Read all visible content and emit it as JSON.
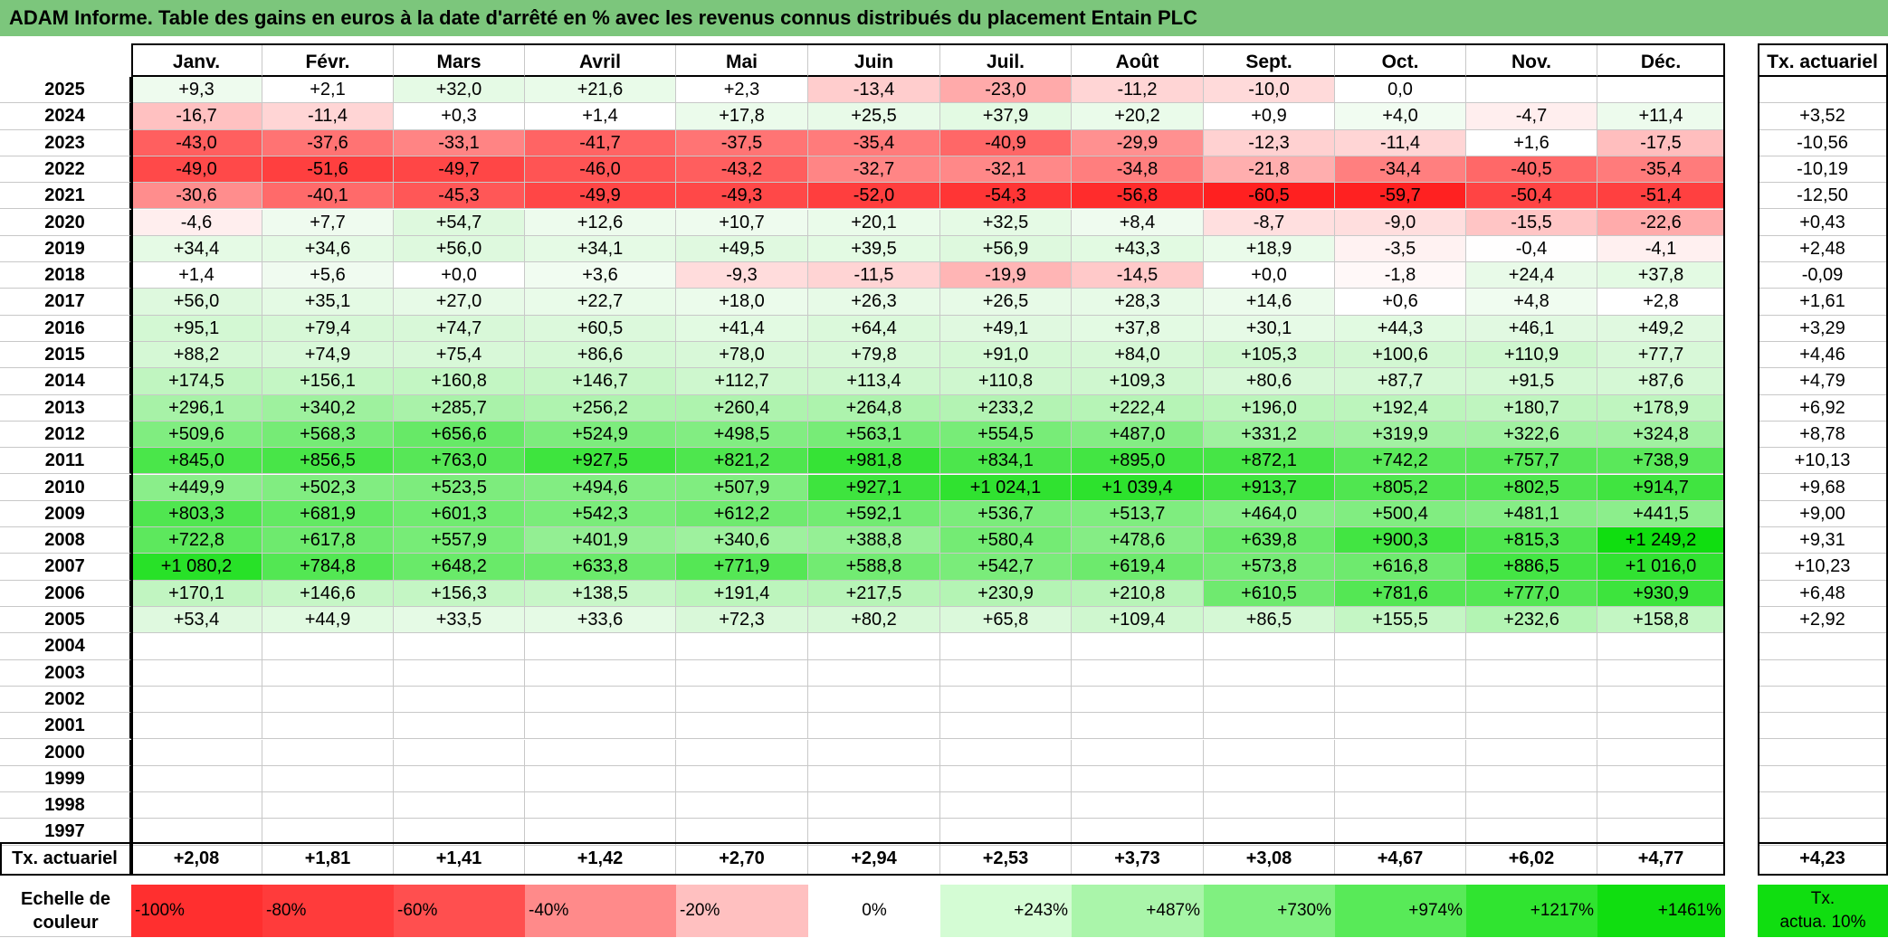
{
  "title": "ADAM Informe. Table des gains en euros à la date d'arrêté en % avec les revenus connus distribués du placement Entain PLC",
  "months": [
    "Janv.",
    "Févr.",
    "Mars",
    "Avril",
    "Mai",
    "Juin",
    "Juil.",
    "Août",
    "Sept.",
    "Oct.",
    "Nov.",
    "Déc."
  ],
  "tx_header": "Tx. actuariel",
  "rows": [
    {
      "year": "2025",
      "values": [
        "+9,3",
        "+2,1",
        "+32,0",
        "+21,6",
        "+2,3",
        "-13,4",
        "-23,0",
        "-11,2",
        "-10,0",
        "0,0",
        "",
        ""
      ],
      "tx": ""
    },
    {
      "year": "2024",
      "values": [
        "-16,7",
        "-11,4",
        "+0,3",
        "+1,4",
        "+17,8",
        "+25,5",
        "+37,9",
        "+20,2",
        "+0,9",
        "+4,0",
        "-4,7",
        "+11,4"
      ],
      "tx": "+3,52"
    },
    {
      "year": "2023",
      "values": [
        "-43,0",
        "-37,6",
        "-33,1",
        "-41,7",
        "-37,5",
        "-35,4",
        "-40,9",
        "-29,9",
        "-12,3",
        "-11,4",
        "+1,6",
        "-17,5"
      ],
      "tx": "-10,56"
    },
    {
      "year": "2022",
      "values": [
        "-49,0",
        "-51,6",
        "-49,7",
        "-46,0",
        "-43,2",
        "-32,7",
        "-32,1",
        "-34,8",
        "-21,8",
        "-34,4",
        "-40,5",
        "-35,4"
      ],
      "tx": "-10,19"
    },
    {
      "year": "2021",
      "values": [
        "-30,6",
        "-40,1",
        "-45,3",
        "-49,9",
        "-49,3",
        "-52,0",
        "-54,3",
        "-56,8",
        "-60,5",
        "-59,7",
        "-50,4",
        "-51,4"
      ],
      "tx": "-12,50"
    },
    {
      "year": "2020",
      "values": [
        "-4,6",
        "+7,7",
        "+54,7",
        "+12,6",
        "+10,7",
        "+20,1",
        "+32,5",
        "+8,4",
        "-8,7",
        "-9,0",
        "-15,5",
        "-22,6"
      ],
      "tx": "+0,43"
    },
    {
      "year": "2019",
      "values": [
        "+34,4",
        "+34,6",
        "+56,0",
        "+34,1",
        "+49,5",
        "+39,5",
        "+56,9",
        "+43,3",
        "+18,9",
        "-3,5",
        "-0,4",
        "-4,1"
      ],
      "tx": "+2,48"
    },
    {
      "year": "2018",
      "values": [
        "+1,4",
        "+5,6",
        "+0,0",
        "+3,6",
        "-9,3",
        "-11,5",
        "-19,9",
        "-14,5",
        "+0,0",
        "-1,8",
        "+24,4",
        "+37,8"
      ],
      "tx": "-0,09"
    },
    {
      "year": "2017",
      "values": [
        "+56,0",
        "+35,1",
        "+27,0",
        "+22,7",
        "+18,0",
        "+26,3",
        "+26,5",
        "+28,3",
        "+14,6",
        "+0,6",
        "+4,8",
        "+2,8"
      ],
      "tx": "+1,61"
    },
    {
      "year": "2016",
      "values": [
        "+95,1",
        "+79,4",
        "+74,7",
        "+60,5",
        "+41,4",
        "+64,4",
        "+49,1",
        "+37,8",
        "+30,1",
        "+44,3",
        "+46,1",
        "+49,2"
      ],
      "tx": "+3,29"
    },
    {
      "year": "2015",
      "values": [
        "+88,2",
        "+74,9",
        "+75,4",
        "+86,6",
        "+78,0",
        "+79,8",
        "+91,0",
        "+84,0",
        "+105,3",
        "+100,6",
        "+110,9",
        "+77,7"
      ],
      "tx": "+4,46"
    },
    {
      "year": "2014",
      "values": [
        "+174,5",
        "+156,1",
        "+160,8",
        "+146,7",
        "+112,7",
        "+113,4",
        "+110,8",
        "+109,3",
        "+80,6",
        "+87,7",
        "+91,5",
        "+87,6"
      ],
      "tx": "+4,79"
    },
    {
      "year": "2013",
      "values": [
        "+296,1",
        "+340,2",
        "+285,7",
        "+256,2",
        "+260,4",
        "+264,8",
        "+233,2",
        "+222,4",
        "+196,0",
        "+192,4",
        "+180,7",
        "+178,9"
      ],
      "tx": "+6,92"
    },
    {
      "year": "2012",
      "values": [
        "+509,6",
        "+568,3",
        "+656,6",
        "+524,9",
        "+498,5",
        "+563,1",
        "+554,5",
        "+487,0",
        "+331,2",
        "+319,9",
        "+322,6",
        "+324,8"
      ],
      "tx": "+8,78"
    },
    {
      "year": "2011",
      "values": [
        "+845,0",
        "+856,5",
        "+763,0",
        "+927,5",
        "+821,2",
        "+981,8",
        "+834,1",
        "+895,0",
        "+872,1",
        "+742,2",
        "+757,7",
        "+738,9"
      ],
      "tx": "+10,13"
    },
    {
      "year": "2010",
      "values": [
        "+449,9",
        "+502,3",
        "+523,5",
        "+494,6",
        "+507,9",
        "+927,1",
        "+1 024,1",
        "+1 039,4",
        "+913,7",
        "+805,2",
        "+802,5",
        "+914,7"
      ],
      "tx": "+9,68"
    },
    {
      "year": "2009",
      "values": [
        "+803,3",
        "+681,9",
        "+601,3",
        "+542,3",
        "+612,2",
        "+592,1",
        "+536,7",
        "+513,7",
        "+464,0",
        "+500,4",
        "+481,1",
        "+441,5"
      ],
      "tx": "+9,00"
    },
    {
      "year": "2008",
      "values": [
        "+722,8",
        "+617,8",
        "+557,9",
        "+401,9",
        "+340,6",
        "+388,8",
        "+580,4",
        "+478,6",
        "+639,8",
        "+900,3",
        "+815,3",
        "+1 249,2"
      ],
      "tx": "+9,31"
    },
    {
      "year": "2007",
      "values": [
        "+1 080,2",
        "+784,8",
        "+648,2",
        "+633,8",
        "+771,9",
        "+588,8",
        "+542,7",
        "+619,4",
        "+573,8",
        "+616,8",
        "+886,5",
        "+1 016,0"
      ],
      "tx": "+10,23"
    },
    {
      "year": "2006",
      "values": [
        "+170,1",
        "+146,6",
        "+156,3",
        "+138,5",
        "+191,4",
        "+217,5",
        "+230,9",
        "+210,8",
        "+610,5",
        "+781,6",
        "+777,0",
        "+930,9"
      ],
      "tx": "+6,48"
    },
    {
      "year": "2005",
      "values": [
        "+53,4",
        "+44,9",
        "+33,5",
        "+33,6",
        "+72,3",
        "+80,2",
        "+65,8",
        "+109,4",
        "+86,5",
        "+155,5",
        "+232,6",
        "+158,8"
      ],
      "tx": "+2,92"
    },
    {
      "year": "2004",
      "values": [
        "",
        "",
        "",
        "",
        "",
        "",
        "",
        "",
        "",
        "",
        "",
        ""
      ],
      "tx": ""
    },
    {
      "year": "2003",
      "values": [
        "",
        "",
        "",
        "",
        "",
        "",
        "",
        "",
        "",
        "",
        "",
        ""
      ],
      "tx": ""
    },
    {
      "year": "2002",
      "values": [
        "",
        "",
        "",
        "",
        "",
        "",
        "",
        "",
        "",
        "",
        "",
        ""
      ],
      "tx": ""
    },
    {
      "year": "2001",
      "values": [
        "",
        "",
        "",
        "",
        "",
        "",
        "",
        "",
        "",
        "",
        "",
        ""
      ],
      "tx": ""
    },
    {
      "year": "2000",
      "values": [
        "",
        "",
        "",
        "",
        "",
        "",
        "",
        "",
        "",
        "",
        "",
        ""
      ],
      "tx": ""
    },
    {
      "year": "1999",
      "values": [
        "",
        "",
        "",
        "",
        "",
        "",
        "",
        "",
        "",
        "",
        "",
        ""
      ],
      "tx": ""
    },
    {
      "year": "1998",
      "values": [
        "",
        "",
        "",
        "",
        "",
        "",
        "",
        "",
        "",
        "",
        "",
        ""
      ],
      "tx": ""
    },
    {
      "year": "1997",
      "values": [
        "",
        "",
        "",
        "",
        "",
        "",
        "",
        "",
        "",
        "",
        "",
        ""
      ],
      "tx": ""
    }
  ],
  "tx_row": {
    "label": "Tx. actuariel",
    "values": [
      "+2,08",
      "+1,81",
      "+1,41",
      "+1,42",
      "+2,70",
      "+2,94",
      "+2,53",
      "+3,73",
      "+3,08",
      "+4,67",
      "+6,02",
      "+4,77"
    ],
    "total": "+4,23"
  },
  "scale": {
    "label_line1": "Echelle de",
    "label_line2": "couleur",
    "items": [
      {
        "text": "-100%",
        "color": "#ff2f2f"
      },
      {
        "text": "-80%",
        "color": "#ff3b3b"
      },
      {
        "text": "-60%",
        "color": "#ff4f4f"
      },
      {
        "text": "-40%",
        "color": "#ff8a8a"
      },
      {
        "text": "-20%",
        "color": "#ffc0c0"
      },
      {
        "text": "0%",
        "color": "#ffffff"
      },
      {
        "text": "+243%",
        "color": "#d4fcd4"
      },
      {
        "text": "+487%",
        "color": "#aaf5aa"
      },
      {
        "text": "+730%",
        "color": "#80f080"
      },
      {
        "text": "+974%",
        "color": "#58ea58"
      },
      {
        "text": "+1217%",
        "color": "#30e430"
      },
      {
        "text": "+1461%",
        "color": "#10de10"
      }
    ],
    "tx_line1": "Tx.",
    "tx_line2": "actua. 10%",
    "tx_color": "#10de10"
  }
}
